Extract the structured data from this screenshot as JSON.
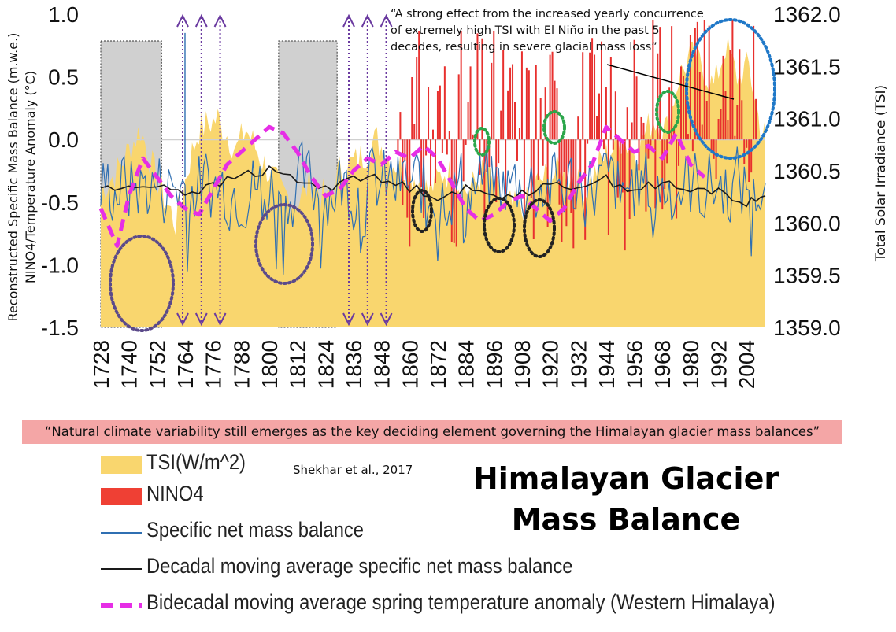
{
  "chart_data": {
    "type": "line",
    "y_left": {
      "label_line1": "Reconstructed Specific Mass Balance (m.w.e.)",
      "label_line2": "NINO4/Temperature Anomaly (°C)",
      "ticks": [
        "1.0",
        "0.5",
        "0.0",
        "-0.5",
        "-1.0",
        "-1.5"
      ],
      "range": [
        -1.5,
        1.0
      ]
    },
    "y_right": {
      "label": "Total Solar Irradiance (TSI)",
      "ticks": [
        "1362.0",
        "1361.5",
        "1361.0",
        "1360.5",
        "1360.0",
        "1359.5",
        "1359.0"
      ],
      "range": [
        1359.0,
        1362.0
      ]
    },
    "x_axis": {
      "ticks": [
        "1728",
        "1740",
        "1752",
        "1764",
        "1776",
        "1788",
        "1800",
        "1812",
        "1824",
        "1836",
        "1848",
        "1860",
        "1872",
        "1884",
        "1896",
        "1908",
        "1920",
        "1932",
        "1944",
        "1956",
        "1968",
        "1980",
        "1992",
        "2004"
      ],
      "range": [
        1728,
        2012
      ]
    },
    "series": [
      {
        "name": "TSI(W/m^2)",
        "type": "area",
        "color": "#f9d66e",
        "x": [
          1728,
          1735,
          1745,
          1752,
          1760,
          1766,
          1770,
          1778,
          1786,
          1790,
          1797,
          1805,
          1812,
          1818,
          1825,
          1830,
          1838,
          1846,
          1852,
          1860,
          1868,
          1875,
          1885,
          1892,
          1900,
          1908,
          1915,
          1925,
          1935,
          1942,
          1950,
          1957,
          1964,
          1970,
          1975,
          1980,
          1985,
          1990,
          1995,
          2000,
          2005,
          2010
        ],
        "values": [
          1360.3,
          1360.5,
          1360.9,
          1360.4,
          1360.0,
          1360.6,
          1360.9,
          1361.0,
          1360.7,
          1360.9,
          1360.6,
          1360.3,
          1360.2,
          1360.4,
          1360.2,
          1360.5,
          1360.6,
          1360.8,
          1360.6,
          1360.5,
          1360.3,
          1360.5,
          1360.3,
          1360.5,
          1360.2,
          1360.1,
          1360.4,
          1360.5,
          1360.3,
          1360.6,
          1360.8,
          1360.7,
          1361.0,
          1360.9,
          1361.4,
          1361.6,
          1361.5,
          1361.3,
          1361.7,
          1361.4,
          1361.5,
          1360.9
        ]
      },
      {
        "name": "NINO4",
        "type": "bar",
        "color": "#e8302e",
        "note_period": "1855–2008",
        "values_sample": [
          0.0,
          -0.5,
          -0.9,
          0.3,
          -0.6,
          0.1,
          -1.0,
          0.4,
          -0.4,
          0.2,
          0.6,
          0.7,
          -0.3,
          0.5,
          0.3,
          -0.8,
          0.7,
          0.4,
          0.9,
          0.6,
          0.8
        ]
      },
      {
        "name": "Specific net mass balance",
        "type": "line",
        "color": "#2f6fb2",
        "x_range": [
          1728,
          2012
        ]
      },
      {
        "name": "Decadal moving average specific net mass balance",
        "type": "line",
        "color": "#1a1a1a",
        "x": [
          1728,
          1740,
          1752,
          1764,
          1776,
          1788,
          1800,
          1812,
          1824,
          1836,
          1848,
          1860,
          1872,
          1884,
          1896,
          1908,
          1920,
          1932,
          1944,
          1956,
          1968,
          1980,
          1992,
          2004,
          2012
        ],
        "values": [
          -0.38,
          -0.4,
          -0.35,
          -0.42,
          -0.38,
          -0.28,
          -0.25,
          -0.32,
          -0.4,
          -0.28,
          -0.33,
          -0.38,
          -0.45,
          -0.4,
          -0.45,
          -0.42,
          -0.38,
          -0.36,
          -0.32,
          -0.4,
          -0.35,
          -0.42,
          -0.4,
          -0.52,
          -0.45
        ]
      },
      {
        "name": "Bidecadal moving average spring temperature anomaly (Western Himalaya)",
        "type": "line",
        "color": "#e62ee6",
        "dashed": true,
        "x": [
          1728,
          1735,
          1740,
          1746,
          1752,
          1758,
          1764,
          1770,
          1776,
          1782,
          1788,
          1794,
          1800,
          1806,
          1812,
          1818,
          1824,
          1830,
          1836,
          1842,
          1848,
          1854,
          1860,
          1866,
          1872,
          1878,
          1884,
          1890,
          1896,
          1902,
          1908,
          1914,
          1920,
          1926,
          1932,
          1938,
          1944,
          1950,
          1956,
          1962,
          1968,
          1974,
          1980,
          1986
        ],
        "values": [
          -0.55,
          -0.85,
          -0.45,
          -0.15,
          -0.3,
          -0.45,
          -0.55,
          -0.6,
          -0.4,
          -0.2,
          -0.1,
          0.0,
          0.1,
          0.05,
          -0.1,
          -0.3,
          -0.45,
          -0.4,
          -0.25,
          -0.15,
          -0.2,
          -0.1,
          -0.15,
          -0.05,
          -0.15,
          -0.35,
          -0.55,
          -0.65,
          -0.6,
          -0.5,
          -0.45,
          -0.55,
          -0.65,
          -0.55,
          -0.35,
          -0.2,
          0.1,
          0.0,
          -0.1,
          -0.05,
          -0.15,
          0.05,
          -0.2,
          -0.3
        ]
      }
    ],
    "shaded_periods": [
      [
        1728,
        1754
      ],
      [
        1804,
        1829
      ]
    ],
    "arrow_years": [
      1763,
      1771,
      1779,
      1834,
      1842,
      1850
    ]
  },
  "annotation": {
    "line1": "“A strong effect from the increased yearly concurrence",
    "line2": "of extremely high TSI with El Niño in the past 5",
    "line3": "decades, resulting in severe glacial mass loss”"
  },
  "quote": "“Natural climate variability still emerges as the key deciding element governing the Himalayan glacier mass balances”",
  "citation": "Shekhar et al., 2017",
  "title_line1": "Himalayan Glacier",
  "title_line2": "Mass Balance",
  "legend": [
    {
      "label": "TSI(W/m^2)",
      "kind": "fill",
      "color": "#f9d66e"
    },
    {
      "label": "NINO4",
      "kind": "fill",
      "color": "#ef4034"
    },
    {
      "label": "Specific net mass balance",
      "kind": "line",
      "color": "#2f6fb2"
    },
    {
      "label": "Decadal moving average specific net mass balance",
      "kind": "line",
      "color": "#1a1a1a"
    },
    {
      "label": "Bidecadal moving average spring temperature anomaly (Western Himalaya)",
      "kind": "dash",
      "color": "#e62ee6"
    }
  ]
}
